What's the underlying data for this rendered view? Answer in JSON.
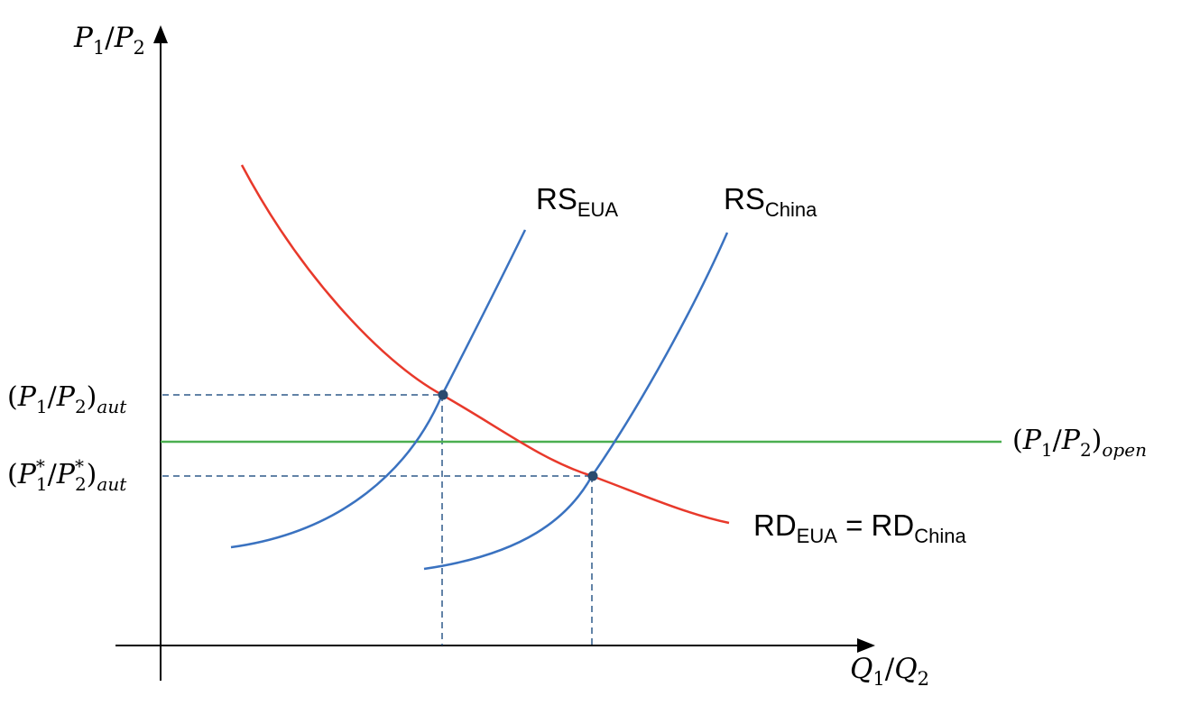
{
  "axes": {
    "y_label": {
      "p1": "P",
      "sub1": "1",
      "slash": "/",
      "p2": "P",
      "sub2": "2"
    },
    "x_label": {
      "q1": "Q",
      "sub1": "1",
      "slash": "/",
      "q2": "Q",
      "sub2": "2"
    }
  },
  "curves": {
    "rs_eua": {
      "main": "RS",
      "sub": "EUA",
      "color": "#3a72c0"
    },
    "rs_china": {
      "main": "RS",
      "sub": "China",
      "color": "#3a72c0"
    },
    "rd": {
      "main1": "RD",
      "sub1": "EUA",
      "eq": " = ",
      "main2": "RD",
      "sub2": "China",
      "color": "#e8392b"
    },
    "open_line": {
      "color": "#4caf50"
    }
  },
  "price_labels": {
    "aut": {
      "open": "(",
      "p1": "P",
      "s1": "1",
      "slash": "/",
      "p2": "P",
      "s2": "2",
      "close": ")",
      "sub": "aut"
    },
    "aut_star": {
      "open": "(",
      "p1": "P",
      "s1": "1",
      "star1": "*",
      "slash": "/",
      "p2": "P",
      "s2": "2",
      "star2": "*",
      "close": ")",
      "sub": "aut"
    },
    "open": {
      "open": "(",
      "p1": "P",
      "s1": "1",
      "slash": "/",
      "p2": "P",
      "s2": "2",
      "close": ")",
      "sub": "open"
    }
  },
  "colors": {
    "point": "#2a4a6e",
    "dashed": "#2e5a8a",
    "axis": "#000000"
  }
}
